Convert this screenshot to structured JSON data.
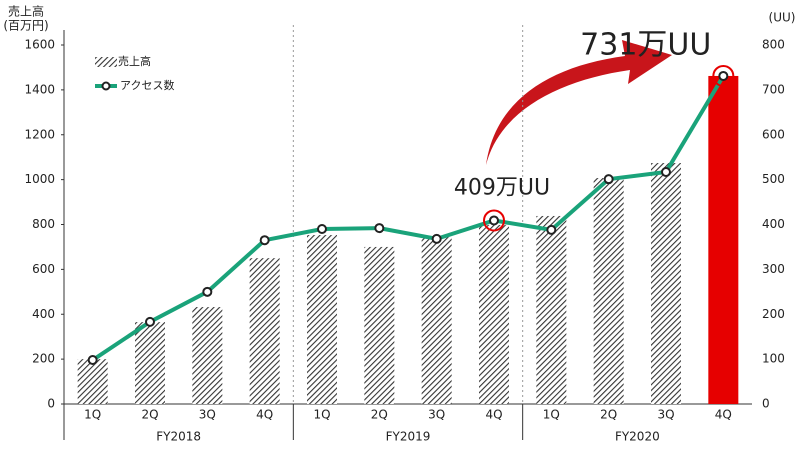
{
  "chart_data": {
    "type": "bar_line",
    "ylabel": [
      "売上高",
      "(百万円)"
    ],
    "y2label": "(UU)",
    "categories": [
      "1Q",
      "2Q",
      "3Q",
      "4Q",
      "1Q",
      "2Q",
      "3Q",
      "4Q",
      "1Q",
      "2Q",
      "3Q",
      "4Q"
    ],
    "groups": [
      "FY2018",
      "FY2019",
      "FY2020"
    ],
    "ylim": [
      0,
      1600
    ],
    "yticks": [
      0,
      200,
      400,
      600,
      800,
      1000,
      1200,
      1400,
      1600
    ],
    "y2lim": [
      0,
      800
    ],
    "y2ticks": [
      0,
      100,
      200,
      300,
      400,
      500,
      600,
      700,
      800
    ],
    "series": [
      {
        "name": "売上高",
        "type": "bar",
        "color": "#333333",
        "values": [
          200,
          365,
          432,
          650,
          753,
          700,
          744,
          798,
          838,
          1007,
          1074,
          1462
        ],
        "highlight": {
          "index": 11,
          "color": "#e60000"
        }
      },
      {
        "name": "アクセス数",
        "type": "line",
        "axis": "y2",
        "color": "#1aa37a",
        "values": [
          98,
          183,
          250,
          365,
          390,
          392,
          368,
          409,
          388,
          501,
          517,
          731
        ],
        "value_labels": [
          null,
          null,
          null,
          null,
          null,
          null,
          null,
          "409万UU",
          null,
          null,
          null,
          "731万UU"
        ],
        "label_color": "#e60000"
      }
    ]
  }
}
